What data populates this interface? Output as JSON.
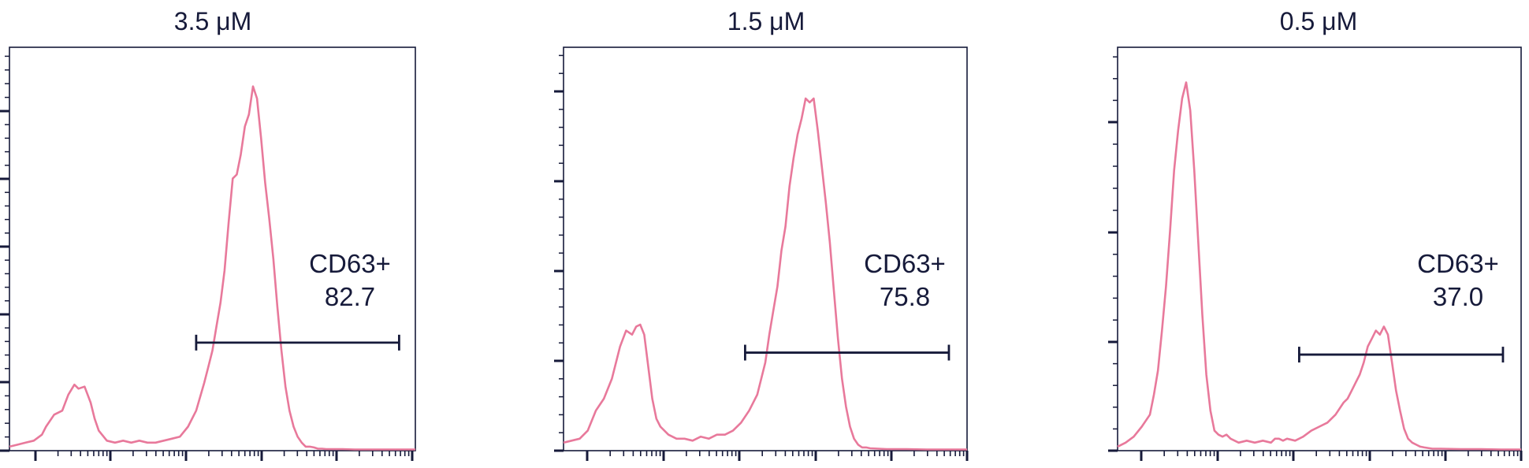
{
  "colors": {
    "histogram": "#e8799b",
    "axis": "#161a3a"
  },
  "chart_data": [
    {
      "type": "line",
      "title": "3.5 μM",
      "xlabel": "",
      "ylabel": "",
      "xlim": [
        0,
        100
      ],
      "ylim": [
        0,
        100
      ],
      "grid": false,
      "series": [
        {
          "x": [
            0,
            2,
            4,
            6,
            8,
            9,
            11,
            13,
            14.5,
            16,
            17,
            18.5,
            20,
            21,
            22,
            24,
            26,
            28,
            30,
            32,
            34,
            36,
            38,
            40,
            42,
            44,
            46,
            48,
            49,
            50,
            51,
            52,
            53,
            54,
            55,
            56,
            57,
            58,
            59,
            60,
            61,
            62,
            63,
            64,
            65,
            66,
            67,
            68,
            69,
            70,
            71,
            72,
            73,
            74,
            75,
            76,
            77,
            78,
            80,
            82,
            85,
            90,
            95,
            100
          ],
          "y": [
            1,
            1.5,
            2,
            2.5,
            4,
            6,
            9,
            10,
            14,
            16.5,
            15.5,
            16,
            12,
            8,
            5,
            2.5,
            2,
            2.5,
            2,
            2.5,
            2,
            2,
            2.5,
            3,
            3.5,
            6,
            10,
            17,
            21,
            25,
            31,
            37,
            45,
            57,
            68,
            69,
            74,
            81,
            84,
            91,
            88,
            78,
            67,
            58,
            48,
            36,
            25,
            16,
            10,
            6,
            3.5,
            2,
            1,
            1,
            0.8,
            0.5,
            0.5,
            0.4,
            0.4,
            0.4,
            0.3,
            0.3,
            0.3,
            0.3
          ]
        }
      ],
      "gate": {
        "label": "CD63+",
        "value": "82.7",
        "x_start": 46,
        "x_end": 96,
        "y": 27
      }
    },
    {
      "type": "line",
      "title": "1.5 μM",
      "xlabel": "",
      "ylabel": "",
      "xlim": [
        0,
        100
      ],
      "ylim": [
        0,
        100
      ],
      "grid": false,
      "series": [
        {
          "x": [
            0,
            2,
            4,
            6,
            8,
            10,
            12,
            14,
            15.5,
            17,
            18,
            19,
            20,
            21,
            22,
            23,
            24,
            26,
            28,
            30,
            32,
            34,
            36,
            38,
            40,
            42,
            44,
            46,
            48,
            50,
            51,
            52,
            53,
            54,
            55,
            56,
            57,
            58,
            59,
            60,
            61,
            62,
            63,
            64,
            65,
            66,
            67,
            68,
            69,
            70,
            71,
            72,
            73,
            74,
            75,
            76,
            78,
            80,
            85,
            90,
            95,
            100
          ],
          "y": [
            2,
            2.5,
            3,
            5,
            10,
            13,
            18,
            26,
            30,
            29,
            31,
            31.5,
            29,
            21,
            13,
            8,
            6,
            4,
            3,
            3,
            2.5,
            3.5,
            3,
            4,
            4,
            5,
            7,
            10,
            14,
            22,
            29,
            35,
            41,
            50,
            56,
            66,
            73,
            79,
            83,
            88,
            87,
            88,
            80,
            71,
            62,
            52,
            40,
            28,
            18,
            11,
            6,
            3,
            1.5,
            0.8,
            0.8,
            0.6,
            0.5,
            0.4,
            0.4,
            0.3,
            0.3,
            0.3
          ]
        }
      ],
      "gate": {
        "label": "CD63+",
        "value": "75.8",
        "x_start": 45,
        "x_end": 95.5,
        "y": 24.5
      }
    },
    {
      "type": "line",
      "title": "0.5 μM",
      "xlabel": "",
      "ylabel": "",
      "xlim": [
        0,
        100
      ],
      "ylim": [
        0,
        100
      ],
      "grid": false,
      "series": [
        {
          "x": [
            0,
            2,
            4,
            6,
            8,
            9,
            10,
            11,
            12,
            13,
            14,
            15,
            16,
            17,
            18,
            19,
            20,
            21,
            22,
            23,
            24,
            25,
            26,
            27,
            28,
            30,
            32,
            34,
            36,
            38,
            39,
            40,
            41,
            42,
            44,
            46,
            48,
            50,
            52,
            54,
            56,
            57,
            58,
            59,
            60,
            61,
            62,
            63,
            64,
            65,
            66,
            67,
            68,
            69,
            70,
            71,
            72,
            73,
            74,
            75,
            76,
            78,
            80,
            85,
            90,
            95,
            100
          ],
          "y": [
            1,
            2,
            3.5,
            6,
            9,
            14,
            20,
            30,
            41,
            55,
            70,
            80,
            88,
            92,
            85,
            70,
            52,
            34,
            19,
            10,
            5,
            4,
            3.5,
            4,
            3,
            2,
            2.5,
            2,
            2.5,
            2,
            3,
            3,
            2.5,
            3,
            2.5,
            3.5,
            5,
            6,
            7,
            9,
            12,
            13,
            15,
            17,
            19,
            22,
            26,
            28,
            30,
            29,
            31,
            29,
            22,
            15,
            10,
            5.5,
            3,
            2,
            1.5,
            1,
            0.8,
            0.5,
            0.5,
            0.4,
            0.4,
            0.3,
            0.3
          ]
        }
      ],
      "gate": {
        "label": "CD63+",
        "value": "37.0",
        "x_start": 45,
        "x_end": 95.5,
        "y": 24
      }
    }
  ]
}
